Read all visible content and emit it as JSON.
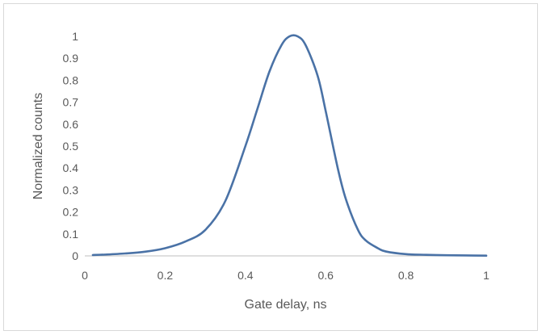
{
  "chart_data": {
    "type": "line",
    "title": "",
    "xlabel": "Gate delay, ns",
    "ylabel": "Normalized counts",
    "xlim": [
      0,
      1
    ],
    "ylim": [
      0,
      1
    ],
    "x_ticks": [
      "0",
      "0.2",
      "0.4",
      "0.6",
      "0.8",
      "1"
    ],
    "y_ticks": [
      "0",
      "0.1",
      "0.2",
      "0.3",
      "0.4",
      "0.5",
      "0.6",
      "0.7",
      "0.8",
      "0.9",
      "1"
    ],
    "grid": false,
    "legend": "none",
    "series": [
      {
        "color": "#4a72a6",
        "x": [
          0.02,
          0.05,
          0.1,
          0.15,
          0.2,
          0.25,
          0.3,
          0.35,
          0.4,
          0.43,
          0.46,
          0.49,
          0.51,
          0.53,
          0.55,
          0.58,
          0.6,
          0.63,
          0.65,
          0.68,
          0.7,
          0.73,
          0.75,
          0.8,
          0.85,
          0.9,
          0.95,
          1.0
        ],
        "y": [
          0.004,
          0.006,
          0.011,
          0.019,
          0.035,
          0.065,
          0.118,
          0.25,
          0.5,
          0.67,
          0.84,
          0.96,
          1.0,
          1.0,
          0.96,
          0.82,
          0.66,
          0.4,
          0.26,
          0.12,
          0.07,
          0.035,
          0.02,
          0.008,
          0.005,
          0.003,
          0.002,
          0.001
        ]
      }
    ]
  }
}
